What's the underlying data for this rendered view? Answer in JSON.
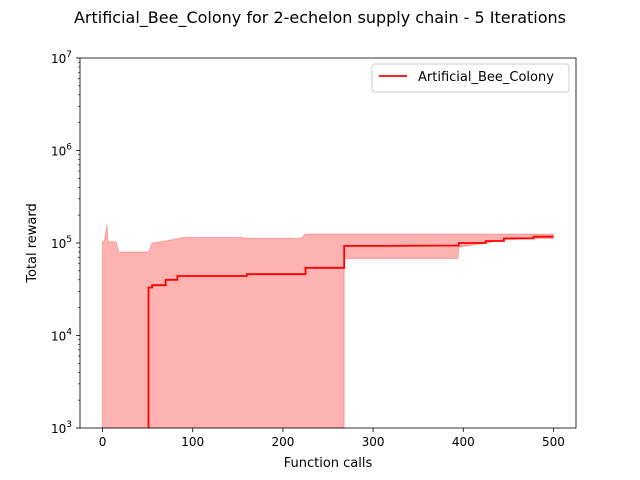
{
  "chart_data": {
    "type": "line",
    "title": "Artificial_Bee_Colony for 2-echelon supply chain - 5 Iterations",
    "xlabel": "Function calls",
    "ylabel": "Total reward",
    "xlim": [
      -25,
      525
    ],
    "ylim": [
      1000,
      10000000
    ],
    "yscale": "log",
    "grid": false,
    "legend_position": "top-right",
    "xticks": [
      0,
      100,
      200,
      300,
      400,
      500
    ],
    "xtick_labels": [
      "0",
      "100",
      "200",
      "300",
      "400",
      "500"
    ],
    "ytick_bases": [
      "10",
      "10",
      "10",
      "10",
      "10"
    ],
    "ytick_exponents": [
      "3",
      "4",
      "5",
      "6",
      "7"
    ],
    "yticks": [
      1000,
      10000,
      100000,
      1000000,
      10000000
    ],
    "series": [
      {
        "name": "Artificial_Bee_Colony",
        "color": "#ff0000",
        "x": [
          51,
          51,
          55,
          55,
          70,
          70,
          83,
          83,
          160,
          160,
          225,
          225,
          268,
          268,
          300,
          395,
          395,
          425,
          425,
          445,
          445,
          478,
          478,
          500
        ],
        "y": [
          1000,
          33000,
          33000,
          35000,
          35000,
          40000,
          40000,
          44000,
          44000,
          46000,
          46000,
          54000,
          54000,
          93000,
          93000,
          94000,
          100000,
          100000,
          105000,
          105000,
          112000,
          112000,
          117000,
          117000
        ]
      }
    ],
    "band": {
      "color": "#ff0000",
      "opacity": 0.3,
      "upper_x": [
        0,
        2,
        5,
        6,
        8,
        15,
        18,
        51,
        55,
        70,
        80,
        90,
        155,
        160,
        220,
        225,
        268,
        395,
        410,
        440,
        445,
        500
      ],
      "upper_y": [
        103000,
        104000,
        158000,
        104000,
        103000,
        103000,
        80000,
        80000,
        100000,
        105000,
        110000,
        115000,
        115000,
        112000,
        112000,
        125000,
        125000,
        125000,
        125000,
        125000,
        125000,
        125000
      ],
      "lower_x": [
        500,
        478,
        445,
        425,
        395,
        394,
        268,
        268,
        0
      ],
      "lower_y": [
        112000,
        112000,
        108000,
        100000,
        90000,
        68000,
        68000,
        1000,
        1000
      ]
    }
  }
}
